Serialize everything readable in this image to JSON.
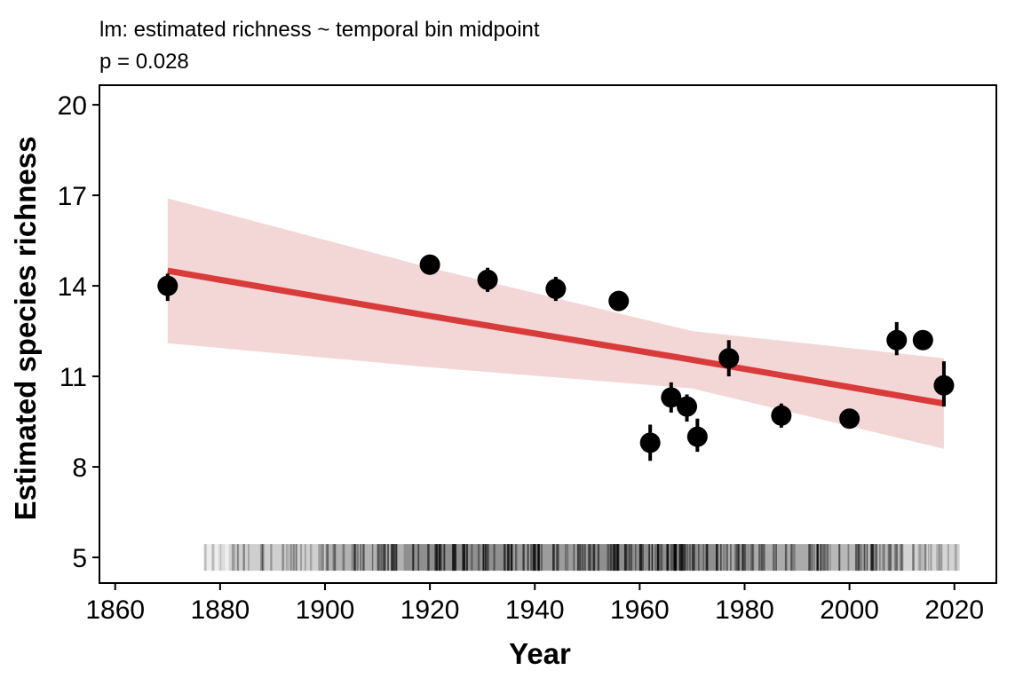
{
  "chart_data": {
    "type": "scatter",
    "title": "",
    "subtitle_lines": [
      "lm: estimated richness ~ temporal bin midpoint",
      "p = 0.028"
    ],
    "xlabel": "Year",
    "ylabel": "Estimated species richness",
    "xlim": [
      1857,
      2028
    ],
    "ylim": [
      4.15,
      20.65
    ],
    "x_ticks": [
      1860,
      1880,
      1900,
      1920,
      1940,
      1960,
      1980,
      2000,
      2020
    ],
    "y_ticks": [
      5,
      8,
      11,
      14,
      17,
      20
    ],
    "grid": false,
    "legend": "none",
    "colors": {
      "points": "#000000",
      "fit_line": "#d93a3a",
      "ribbon": "#f3d6d6",
      "rug": "#000000"
    },
    "points": [
      {
        "x": 1870,
        "y": 14.0,
        "low": 13.5,
        "high": 14.4
      },
      {
        "x": 1920,
        "y": 14.7,
        "low": 14.5,
        "high": 14.9
      },
      {
        "x": 1931,
        "y": 14.2,
        "low": 13.8,
        "high": 14.6
      },
      {
        "x": 1944,
        "y": 13.9,
        "low": 13.5,
        "high": 14.3
      },
      {
        "x": 1956,
        "y": 13.5,
        "low": 13.2,
        "high": 13.8
      },
      {
        "x": 1962,
        "y": 8.8,
        "low": 8.2,
        "high": 9.4
      },
      {
        "x": 1966,
        "y": 10.3,
        "low": 9.8,
        "high": 10.8
      },
      {
        "x": 1969,
        "y": 10.0,
        "low": 9.5,
        "high": 10.4
      },
      {
        "x": 1971,
        "y": 9.0,
        "low": 8.5,
        "high": 9.6
      },
      {
        "x": 1977,
        "y": 11.6,
        "low": 11.0,
        "high": 12.2
      },
      {
        "x": 1987,
        "y": 9.7,
        "low": 9.3,
        "high": 10.1
      },
      {
        "x": 2000,
        "y": 9.6,
        "low": 9.5,
        "high": 9.7
      },
      {
        "x": 2009,
        "y": 12.2,
        "low": 11.7,
        "high": 12.8
      },
      {
        "x": 2014,
        "y": 12.2,
        "low": 12.1,
        "high": 12.3
      },
      {
        "x": 2018,
        "y": 10.7,
        "low": 10.0,
        "high": 11.5
      }
    ],
    "fit": {
      "x": [
        1870,
        1920,
        1970,
        2018
      ],
      "y": [
        14.5,
        13.0,
        11.55,
        10.1
      ],
      "lower": [
        12.1,
        11.3,
        10.6,
        8.6
      ],
      "upper": [
        16.9,
        14.6,
        12.5,
        11.6
      ]
    },
    "rug": {
      "y": 5,
      "range": [
        1877,
        2021
      ],
      "density": [
        {
          "from": 1877,
          "to": 1882,
          "opacity": 0.12
        },
        {
          "from": 1882,
          "to": 1900,
          "opacity": 0.35
        },
        {
          "from": 1900,
          "to": 1915,
          "opacity": 0.55
        },
        {
          "from": 1915,
          "to": 1935,
          "opacity": 0.8
        },
        {
          "from": 1935,
          "to": 1950,
          "opacity": 0.7
        },
        {
          "from": 1950,
          "to": 1975,
          "opacity": 0.8
        },
        {
          "from": 1975,
          "to": 1995,
          "opacity": 0.6
        },
        {
          "from": 1995,
          "to": 2010,
          "opacity": 0.5
        },
        {
          "from": 2010,
          "to": 2021,
          "opacity": 0.3
        }
      ]
    }
  }
}
